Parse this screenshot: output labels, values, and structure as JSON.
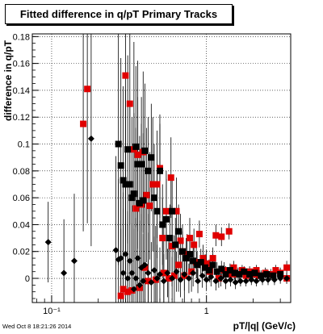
{
  "chart_data": {
    "type": "scatter",
    "title": "Fitted difference in q/pT  Primary Tracks",
    "xlabel": "pT/|q| (GeV/c)",
    "ylabel": "difference in q/pT",
    "xscale": "log",
    "xlim": [
      0.075,
      3.5
    ],
    "ylim": [
      -0.018,
      0.182
    ],
    "grid": true,
    "x_ticks": [
      {
        "value": 0.1,
        "label": "10⁻¹"
      },
      {
        "value": 1,
        "label": "1"
      }
    ],
    "y_ticks": [
      {
        "value": 0,
        "label": "0"
      },
      {
        "value": 0.02,
        "label": "0.02"
      },
      {
        "value": 0.04,
        "label": "0.04"
      },
      {
        "value": 0.06,
        "label": "0.06"
      },
      {
        "value": 0.08,
        "label": "0.08"
      },
      {
        "value": 0.1,
        "label": "0.1"
      },
      {
        "value": 0.12,
        "label": "0.12"
      },
      {
        "value": 0.14,
        "label": "0.14"
      },
      {
        "value": 0.16,
        "label": "0.16"
      },
      {
        "value": 0.18,
        "label": "0.18"
      }
    ],
    "series": [
      {
        "color": "#e00000",
        "marker": "square",
        "points": [
          [
            0.16,
            0.115,
            0.08
          ],
          [
            0.17,
            0.141,
            0.1
          ],
          [
            0.3,
            0.151,
            0.12
          ],
          [
            0.28,
            -0.013,
            0.05
          ],
          [
            0.29,
            -0.008,
            0.06
          ],
          [
            0.31,
            -0.01,
            0.05
          ],
          [
            0.32,
            0.13,
            0.09
          ],
          [
            0.33,
            -0.009,
            0.05
          ],
          [
            0.34,
            0.096,
            0.08
          ],
          [
            0.35,
            0.052,
            0.06
          ],
          [
            0.36,
            0.092,
            0.07
          ],
          [
            0.37,
            -0.007,
            0.05
          ],
          [
            0.38,
            0.055,
            0.06
          ],
          [
            0.39,
            0.094,
            0.06
          ],
          [
            0.4,
            0.008,
            0.05
          ],
          [
            0.41,
            0.062,
            0.05
          ],
          [
            0.42,
            -0.002,
            0.05
          ],
          [
            0.43,
            0.054,
            0.04
          ],
          [
            0.45,
            0.07,
            0.05
          ],
          [
            0.47,
            -0.001,
            0.04
          ],
          [
            0.48,
            0.07,
            0.04
          ],
          [
            0.5,
            0.082,
            0.04
          ],
          [
            0.52,
            0.03,
            0.03
          ],
          [
            0.53,
            0.004,
            0.04
          ],
          [
            0.55,
            0.05,
            0.03
          ],
          [
            0.57,
            0.0,
            0.03
          ],
          [
            0.59,
            0.075,
            0.03
          ],
          [
            0.6,
            0.024,
            0.03
          ],
          [
            0.62,
            0.002,
            0.03
          ],
          [
            0.64,
            0.05,
            0.025
          ],
          [
            0.66,
            0.01,
            0.02
          ],
          [
            0.68,
            0.028,
            0.02
          ],
          [
            0.7,
            0.02,
            0.02
          ],
          [
            0.72,
            0.002,
            0.02
          ],
          [
            0.75,
            0.018,
            0.015
          ],
          [
            0.78,
            0.03,
            0.015
          ],
          [
            0.8,
            0.005,
            0.015
          ],
          [
            0.83,
            0.025,
            0.012
          ],
          [
            0.86,
            0.012,
            0.012
          ],
          [
            0.9,
            0.033,
            0.01
          ],
          [
            0.95,
            0.015,
            0.01
          ],
          [
            1.0,
            0.011,
            0.01
          ],
          [
            1.05,
            0.005,
            0.008
          ],
          [
            1.1,
            0.015,
            0.008
          ],
          [
            1.15,
            0.032,
            0.008
          ],
          [
            1.2,
            0.0,
            0.007
          ],
          [
            1.25,
            0.031,
            0.007
          ],
          [
            1.3,
            0.006,
            0.006
          ],
          [
            1.4,
            0.035,
            0.006
          ],
          [
            1.45,
            0.003,
            0.005
          ],
          [
            1.5,
            0.008,
            0.005
          ],
          [
            1.6,
            0.003,
            0.005
          ],
          [
            1.7,
            0.006,
            0.004
          ],
          [
            1.8,
            0.002,
            0.004
          ],
          [
            1.9,
            0.005,
            0.004
          ],
          [
            2.0,
            0.003,
            0.004
          ],
          [
            2.1,
            0.006,
            0.004
          ],
          [
            2.2,
            0.002,
            0.004
          ],
          [
            2.4,
            0.004,
            0.004
          ],
          [
            2.6,
            0.003,
            0.004
          ],
          [
            2.8,
            0.006,
            0.004
          ],
          [
            3.0,
            0.004,
            0.004
          ],
          [
            3.3,
            0.008,
            0.005
          ],
          [
            3.3,
            0.0,
            0.004
          ]
        ]
      },
      {
        "color": "#000000",
        "marker": "square",
        "points": [
          [
            0.27,
            0.1,
            0.09
          ],
          [
            0.28,
            0.084,
            0.08
          ],
          [
            0.29,
            0.073,
            0.07
          ],
          [
            0.3,
            0.07,
            0.07
          ],
          [
            0.31,
            0.096,
            0.07
          ],
          [
            0.32,
            0.07,
            0.06
          ],
          [
            0.33,
            0.06,
            0.06
          ],
          [
            0.34,
            0.063,
            0.06
          ],
          [
            0.35,
            0.098,
            0.06
          ],
          [
            0.36,
            0.085,
            0.05
          ],
          [
            0.37,
            0.056,
            0.05
          ],
          [
            0.38,
            0.085,
            0.05
          ],
          [
            0.39,
            0.058,
            0.05
          ],
          [
            0.4,
            0.095,
            0.05
          ],
          [
            0.42,
            0.08,
            0.04
          ],
          [
            0.44,
            0.09,
            0.04
          ],
          [
            0.46,
            0.06,
            0.04
          ],
          [
            0.48,
            0.05,
            0.035
          ],
          [
            0.5,
            0.08,
            0.035
          ],
          [
            0.52,
            0.04,
            0.03
          ],
          [
            0.55,
            0.044,
            0.03
          ],
          [
            0.58,
            0.03,
            0.025
          ],
          [
            0.6,
            0.05,
            0.025
          ],
          [
            0.63,
            0.025,
            0.02
          ],
          [
            0.66,
            0.035,
            0.02
          ],
          [
            0.7,
            0.02,
            0.015
          ],
          [
            0.74,
            0.015,
            0.015
          ],
          [
            0.78,
            0.018,
            0.012
          ],
          [
            0.82,
            0.013,
            0.012
          ],
          [
            0.87,
            0.01,
            0.01
          ],
          [
            0.92,
            0.012,
            0.01
          ],
          [
            0.98,
            0.008,
            0.01
          ],
          [
            1.04,
            0.006,
            0.008
          ],
          [
            1.1,
            0.01,
            0.008
          ],
          [
            1.17,
            0.005,
            0.007
          ],
          [
            1.25,
            0.007,
            0.006
          ],
          [
            1.33,
            0.003,
            0.006
          ],
          [
            1.42,
            0.006,
            0.005
          ],
          [
            1.52,
            0.004,
            0.005
          ],
          [
            1.63,
            0.003,
            0.005
          ],
          [
            1.75,
            0.005,
            0.004
          ],
          [
            1.9,
            0.003,
            0.004
          ],
          [
            2.05,
            0.004,
            0.004
          ],
          [
            2.25,
            0.002,
            0.004
          ],
          [
            2.45,
            0.003,
            0.004
          ],
          [
            2.7,
            0.002,
            0.004
          ],
          [
            3.0,
            0.003,
            0.004
          ]
        ]
      },
      {
        "color": "#000000",
        "marker": "diamond",
        "points": [
          [
            0.095,
            0.027,
            0.03
          ],
          [
            0.12,
            0.004,
            0.04
          ],
          [
            0.14,
            0.013,
            0.05
          ],
          [
            0.18,
            0.104,
            0.08
          ],
          [
            0.26,
            0.021,
            0.07
          ],
          [
            0.27,
            0.014,
            0.06
          ],
          [
            0.28,
            0.015,
            0.06
          ],
          [
            0.29,
            0.004,
            0.06
          ],
          [
            0.3,
            0.018,
            0.05
          ],
          [
            0.31,
            0.0,
            0.05
          ],
          [
            0.32,
            0.013,
            0.05
          ],
          [
            0.33,
            0.004,
            0.05
          ],
          [
            0.34,
            -0.008,
            0.045
          ],
          [
            0.35,
            0.0,
            0.045
          ],
          [
            0.36,
            0.015,
            0.04
          ],
          [
            0.37,
            -0.005,
            0.04
          ],
          [
            0.38,
            0.008,
            0.04
          ],
          [
            0.39,
            -0.002,
            0.035
          ],
          [
            0.4,
            0.01,
            0.035
          ],
          [
            0.42,
            0.004,
            0.03
          ],
          [
            0.44,
            -0.003,
            0.03
          ],
          [
            0.46,
            0.006,
            0.025
          ],
          [
            0.48,
            0.0,
            0.025
          ],
          [
            0.5,
            0.003,
            0.02
          ],
          [
            0.53,
            -0.002,
            0.02
          ],
          [
            0.56,
            0.004,
            0.018
          ],
          [
            0.6,
            0.0,
            0.016
          ],
          [
            0.64,
            0.005,
            0.015
          ],
          [
            0.68,
            -0.001,
            0.013
          ],
          [
            0.72,
            0.003,
            0.012
          ],
          [
            0.77,
            0.0,
            0.011
          ],
          [
            0.82,
            0.004,
            0.01
          ],
          [
            0.88,
            -0.002,
            0.009
          ],
          [
            0.94,
            0.002,
            0.009
          ],
          [
            1.0,
            -0.001,
            0.008
          ],
          [
            1.07,
            0.001,
            0.007
          ],
          [
            1.15,
            -0.002,
            0.007
          ],
          [
            1.24,
            0.0,
            0.006
          ],
          [
            1.33,
            -0.002,
            0.006
          ],
          [
            1.43,
            -0.001,
            0.005
          ],
          [
            1.54,
            -0.003,
            0.005
          ],
          [
            1.66,
            -0.002,
            0.004
          ],
          [
            1.8,
            -0.002,
            0.004
          ],
          [
            1.95,
            -0.001,
            0.004
          ],
          [
            2.1,
            -0.002,
            0.004
          ],
          [
            2.3,
            -0.001,
            0.004
          ],
          [
            2.5,
            -0.001,
            0.004
          ],
          [
            2.75,
            -0.001,
            0.004
          ],
          [
            3.0,
            0.0,
            0.004
          ],
          [
            3.3,
            0.0,
            0.004
          ]
        ]
      }
    ]
  },
  "timestamp": "Wed Oct  8 18:21:26 2014"
}
